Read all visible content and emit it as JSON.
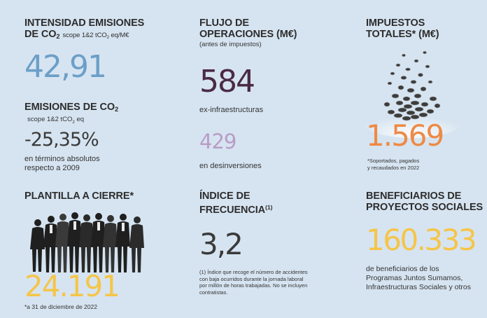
{
  "intensidad": {
    "title_line1": "INTENSIDAD EMISIONES",
    "title_line2_main": "DE CO",
    "title_line2_sub": "2",
    "title_line2_scope": "scope 1&2 tCO",
    "title_line2_scope_sub": "2",
    "title_line2_unit": " eq/M€",
    "value": "42,91"
  },
  "emisiones": {
    "title_main": "EMISIONES DE CO",
    "title_sub": "2",
    "scope_main": "scope 1&2 tCO",
    "scope_sub": "2",
    "scope_unit": " eq",
    "value": "-25,35%",
    "label_line1": "en términos absolutos",
    "label_line2": "respecto a 2009"
  },
  "plantilla": {
    "title": "PLANTILLA A CIERRE*",
    "value": "24.191",
    "note": "*a 31 de diciembre de 2022"
  },
  "flujo": {
    "title_line1": "FLUJO DE",
    "title_line2": "OPERACIONES (M€)",
    "subtitle": "(antes de impuestos)",
    "value1": "584",
    "label1": "ex-infraestructuras",
    "value2": "429",
    "label2": "en desinversiones"
  },
  "indice": {
    "title_line1": "ÍNDICE DE",
    "title_line2": "FRECUENCIA",
    "title_sup": "(1)",
    "value": "3,2",
    "note_line1": "(1) Índice que recoge el número de accidentes",
    "note_line2": "con baja ocurridos durante la jornada laboral",
    "note_line3": "por millón de horas trabajadas. No se incluyen",
    "note_line4": "contratistas."
  },
  "impuestos": {
    "title_line1": "IMPUESTOS",
    "title_line2": "TOTALES* (M€)",
    "value": "1.569",
    "note_line1": "*Soportados, pagados",
    "note_line2": "y  recaudados en 2022"
  },
  "beneficiarios": {
    "title_line1": "BENEFICIARIOS DE",
    "title_line2": "PROYECTOS SOCIALES",
    "value": "160.333",
    "label_line1": "de beneficiarios de los",
    "label_line2": "Programas Juntos Sumamos,",
    "label_line3": "Infraestructuras Sociales y otros"
  },
  "colors": {
    "background": "#d6e4f1",
    "blue": "#6c9fc8",
    "plum": "#4a2a44",
    "lilac": "#b99cc6",
    "orange": "#ee8a45",
    "yellow": "#f5c548"
  },
  "images": {
    "people": "people-group-photo",
    "coins": "coins-pile-photo"
  }
}
